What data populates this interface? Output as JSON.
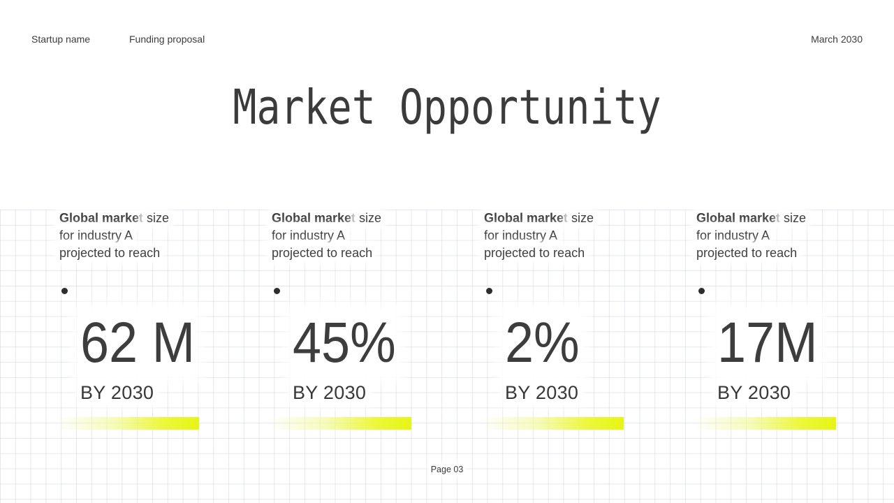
{
  "header": {
    "startup_name": "Startup name",
    "document_type": "Funding proposal",
    "date": "March 2030"
  },
  "title": "Market Opportunity",
  "footer": {
    "page_label": "Page 03"
  },
  "accent_color": "#e6f514",
  "text_color": "#3a3a3a",
  "stats": [
    {
      "desc_bold": "Global market",
      "desc_after_bold": " size",
      "desc_line2": "for industry A",
      "desc_line3": "projected to reach",
      "value": "62 M",
      "period": "BY 2030"
    },
    {
      "desc_bold": "Global market",
      "desc_after_bold": " size",
      "desc_line2": "for industry A",
      "desc_line3": "projected to reach",
      "value": "45%",
      "period": "BY 2030"
    },
    {
      "desc_bold": "Global market",
      "desc_after_bold": " size",
      "desc_line2": "for industry A",
      "desc_line3": "projected to reach",
      "value": "2%",
      "period": "BY 2030"
    },
    {
      "desc_bold": "Global market",
      "desc_after_bold": " size",
      "desc_line2": "for industry A",
      "desc_line3": "projected to reach",
      "value": "17M",
      "period": "BY 2030"
    }
  ]
}
